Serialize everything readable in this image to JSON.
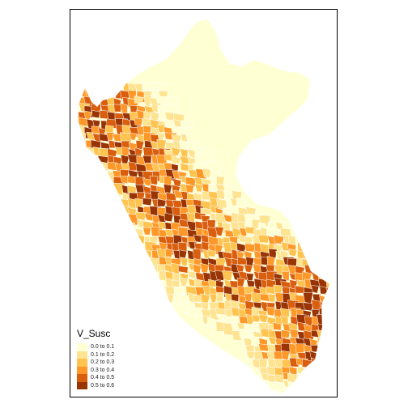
{
  "legend": {
    "title": "V_Susc",
    "classes": [
      {
        "label": "0.0 to 0.1",
        "color": "#ffffd4"
      },
      {
        "label": "0.1 to 0.2",
        "color": "#fee391"
      },
      {
        "label": "0.2 to 0.3",
        "color": "#fec44f"
      },
      {
        "label": "0.3 to 0.4",
        "color": "#fe9929"
      },
      {
        "label": "0.4 to 0.5",
        "color": "#d95f0e"
      },
      {
        "label": "0.5 to 0.6",
        "color": "#993404"
      }
    ]
  },
  "map": {
    "region": "Peru",
    "variable": "V_Susc",
    "border_color": "#ffffff"
  }
}
